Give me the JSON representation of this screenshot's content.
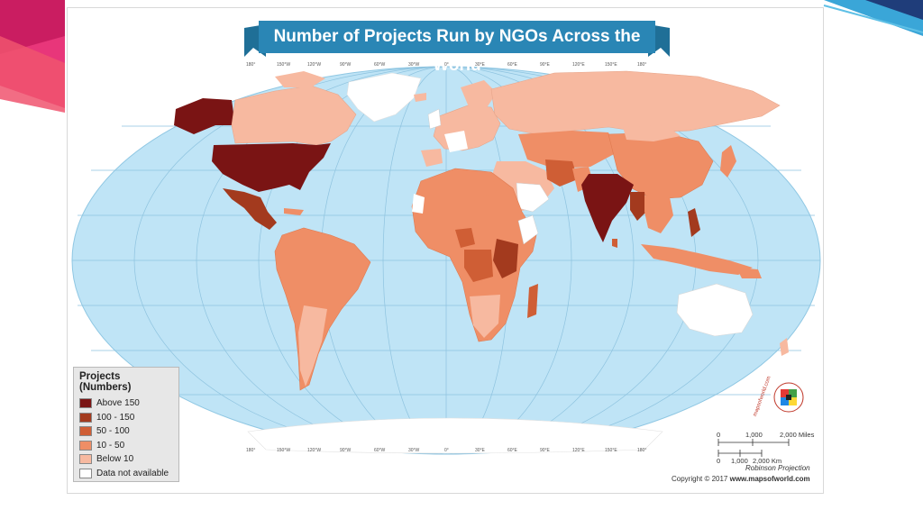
{
  "map": {
    "title": "Number of Projects Run by NGOs Across the World",
    "legend": {
      "title": "Projects (Numbers)",
      "items": [
        {
          "label": "Above 150",
          "color": "#7a1414"
        },
        {
          "label": "100 - 150",
          "color": "#a33a1e"
        },
        {
          "label": "50 - 100",
          "color": "#cf5e35"
        },
        {
          "label": "10 - 50",
          "color": "#ef8e66"
        },
        {
          "label": "Below 10",
          "color": "#f7b9a0"
        },
        {
          "label": "Data not available",
          "color": "#ffffff"
        }
      ]
    },
    "scale": {
      "miles": [
        "0",
        "1,000",
        "2,000 Miles"
      ],
      "km": [
        "0",
        "1,000",
        "2,000 Km"
      ]
    },
    "projection": "Robinson Projection",
    "copyright_prefix": "Copyright © 2017",
    "copyright_site": "www.mapsofworld.com",
    "brand": "mapsofworld.com",
    "longitude_labels": [
      "180°",
      "150°W",
      "120°W",
      "90°W",
      "60°W",
      "30°W",
      "0°",
      "30°E",
      "60°E",
      "90°E",
      "120°E",
      "150°E",
      "180°"
    ],
    "ocean_color": "#bfe4f6",
    "banner_color": "#2a86b5"
  }
}
